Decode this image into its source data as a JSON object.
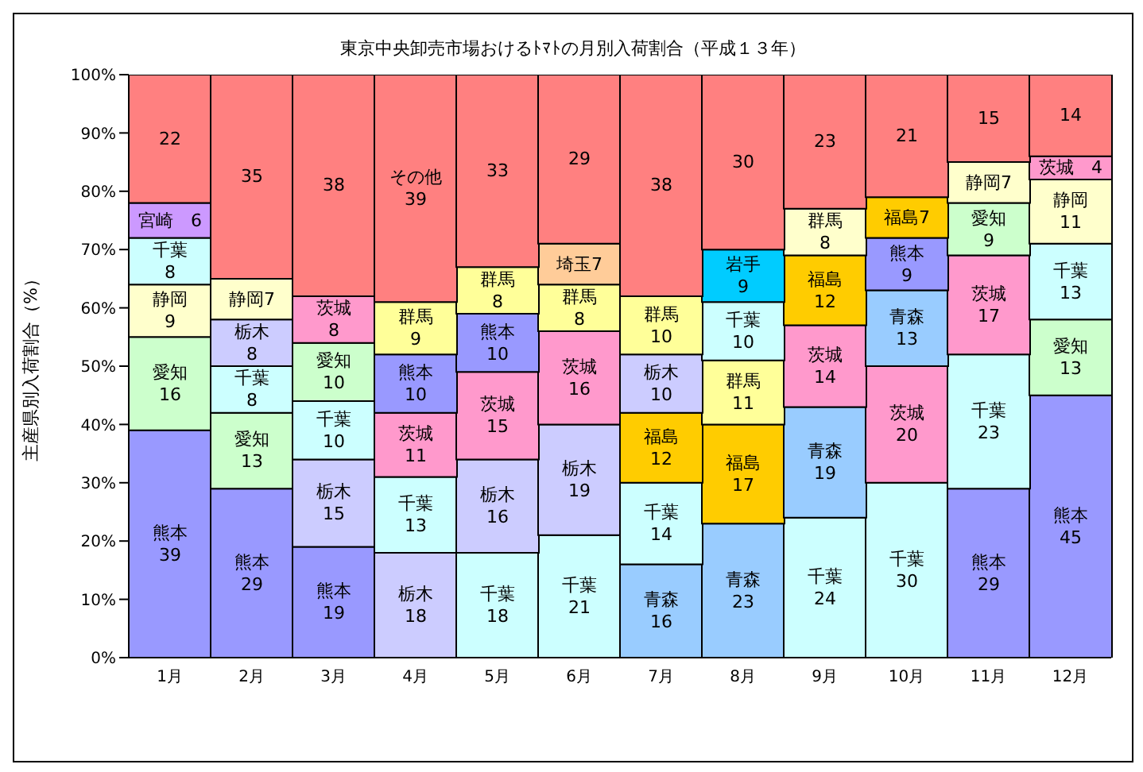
{
  "chart_data": {
    "type": "bar",
    "title": "東京中央卸売市場おけるﾄﾏﾄの月別入荷割合（平成１３年）",
    "ylabel": "主産県別入荷割合（%）",
    "stacked": true,
    "categories": [
      "1月",
      "2月",
      "3月",
      "4月",
      "5月",
      "6月",
      "7月",
      "8月",
      "9月",
      "10月",
      "11月",
      "12月"
    ],
    "ylim": [
      0,
      100
    ],
    "yticks": [
      {
        "value": 0,
        "label": "0%"
      },
      {
        "value": 10,
        "label": "10%"
      },
      {
        "value": 20,
        "label": "20%"
      },
      {
        "value": 30,
        "label": "30%"
      },
      {
        "value": 40,
        "label": "40%"
      },
      {
        "value": 50,
        "label": "50%"
      },
      {
        "value": 60,
        "label": "60%"
      },
      {
        "value": 70,
        "label": "70%"
      },
      {
        "value": 80,
        "label": "80%"
      },
      {
        "value": 90,
        "label": "90%"
      },
      {
        "value": 100,
        "label": "100%"
      }
    ],
    "grid": false,
    "legend": false,
    "series": [
      {
        "values": [
          39,
          29,
          19,
          18,
          18,
          21,
          16,
          23,
          24,
          30,
          29,
          45
        ],
        "colors": [
          "#9999ff",
          "#9999ff",
          "#9999ff",
          "#ccccff",
          "#ccffff",
          "#ccffff",
          "#99ccff",
          "#99ccff",
          "#ccffff",
          "#ccffff",
          "#9999ff",
          "#9999ff"
        ],
        "value_labels": [
          "熊本\n39",
          "熊本\n29",
          "熊本\n19",
          "栃木\n18",
          "千葉\n18",
          "千葉\n21",
          "青森\n16",
          "青森\n23",
          "千葉\n24",
          "千葉\n30",
          "熊本\n29",
          "熊本\n45"
        ]
      },
      {
        "values": [
          16,
          13,
          15,
          13,
          16,
          19,
          14,
          17,
          19,
          20,
          23,
          13
        ],
        "colors": [
          "#ccffcc",
          "#ccffcc",
          "#ccccff",
          "#ccffff",
          "#ccccff",
          "#ccccff",
          "#ccffff",
          "#ffcc00",
          "#99ccff",
          "#ff99cc",
          "#ccffff",
          "#ccffcc"
        ],
        "value_labels": [
          "愛知\n16",
          "愛知\n13",
          "栃木\n15",
          "千葉\n13",
          "栃木\n16",
          "栃木\n19",
          "千葉\n14",
          "福島\n17",
          "青森\n19",
          "茨城\n20",
          "千葉\n23",
          "愛知\n13"
        ]
      },
      {
        "values": [
          9,
          8,
          10,
          11,
          15,
          16,
          12,
          11,
          14,
          13,
          17,
          13
        ],
        "colors": [
          "#ffffcc",
          "#ccffff",
          "#ccffff",
          "#ff99cc",
          "#ff99cc",
          "#ff99cc",
          "#ffcc00",
          "#ffff99",
          "#ff99cc",
          "#99ccff",
          "#ff99cc",
          "#ccffff"
        ],
        "value_labels": [
          "静岡\n9",
          "千葉\n8",
          "千葉\n10",
          "茨城\n11",
          "茨城\n15",
          "茨城\n16",
          "福島\n12",
          "群馬\n11",
          "茨城\n14",
          "青森\n13",
          "茨城\n17",
          "千葉\n13"
        ]
      },
      {
        "values": [
          8,
          8,
          10,
          10,
          10,
          8,
          10,
          10,
          12,
          9,
          9,
          11
        ],
        "colors": [
          "#ccffff",
          "#ccccff",
          "#ccffcc",
          "#9999ff",
          "#9999ff",
          "#ffff99",
          "#ccccff",
          "#ccffff",
          "#ffcc00",
          "#9999ff",
          "#ccffcc",
          "#ffffcc"
        ],
        "value_labels": [
          "千葉\n8",
          "栃木\n8",
          "愛知\n10",
          "熊本\n10",
          "熊本\n10",
          "群馬\n8",
          "栃木\n10",
          "千葉\n10",
          "福島\n12",
          "熊本\n9",
          "愛知\n9",
          "静岡\n11"
        ]
      },
      {
        "values": [
          6,
          7,
          8,
          9,
          8,
          7,
          10,
          9,
          8,
          7,
          7,
          4
        ],
        "colors": [
          "#cc99ff",
          "#ffffcc",
          "#ff99cc",
          "#ffff99",
          "#ffff99",
          "#ffcc99",
          "#ffff99",
          "#00ccff",
          "#ffffcc",
          "#ffcc00",
          "#ffffcc",
          "#ff99cc"
        ],
        "value_labels": [
          "宮崎　6",
          "静岡7",
          "茨城\n8",
          "群馬\n9",
          "群馬\n8",
          "埼玉7",
          "群馬\n10",
          "岩手\n9",
          "群馬\n8",
          "福島7",
          "静岡7",
          "茨城　4"
        ]
      },
      {
        "values": [
          22,
          35,
          38,
          39,
          33,
          29,
          38,
          30,
          23,
          21,
          15,
          14
        ],
        "colors": [
          "#ff8080",
          "#ff8080",
          "#ff8080",
          "#ff8080",
          "#ff8080",
          "#ff8080",
          "#ff8080",
          "#ff8080",
          "#ff8080",
          "#ff8080",
          "#ff8080",
          "#ff8080"
        ],
        "value_labels": [
          "22",
          "35",
          "38",
          "その他\n39",
          "33",
          "29",
          "38",
          "30",
          "23",
          "21",
          "15",
          "14"
        ]
      }
    ]
  }
}
